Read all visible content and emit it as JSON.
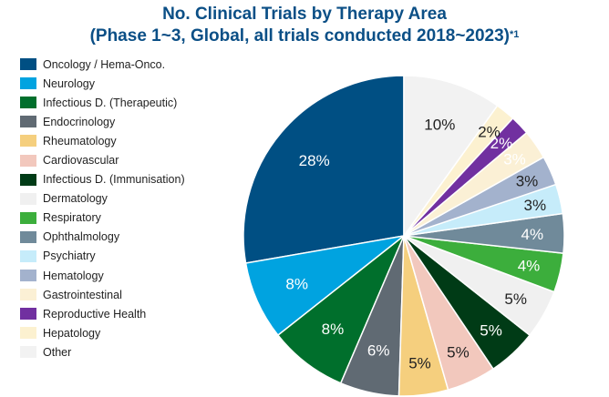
{
  "chart_data": {
    "type": "pie",
    "title": "No. Clinical Trials by Therapy Area",
    "subtitle": "(Phase 1~3, Global, all trials conducted 2018~2023)",
    "footnote_marker": "*1",
    "slices": [
      {
        "name": "Oncology / Hema-Onco.",
        "value": 28,
        "label": "28%",
        "color": "#004f83",
        "label_color": "#ffffff"
      },
      {
        "name": "Neurology",
        "value": 8,
        "label": "8%",
        "color": "#00a3e0",
        "label_color": "#ffffff"
      },
      {
        "name": "Infectious D. (Therapeutic)",
        "value": 8,
        "label": "8%",
        "color": "#006f2c",
        "label_color": "#ffffff"
      },
      {
        "name": "Endocrinology",
        "value": 6,
        "label": "6%",
        "color": "#606a73",
        "label_color": "#ffffff"
      },
      {
        "name": "Rheumatology",
        "value": 5,
        "label": "5%",
        "color": "#f5cf7e",
        "label_color": "#222222"
      },
      {
        "name": "Cardiovascular",
        "value": 5,
        "label": "5%",
        "color": "#f2c8bd",
        "label_color": "#222222"
      },
      {
        "name": "Infectious D. (Immunisation)",
        "value": 5,
        "label": "5%",
        "color": "#003b16",
        "label_color": "#ffffff"
      },
      {
        "name": "Dermatology",
        "value": 5,
        "label": "5%",
        "color": "#f0f0f0",
        "label_color": "#222222"
      },
      {
        "name": "Respiratory",
        "value": 4,
        "label": "4%",
        "color": "#3cae3c",
        "label_color": "#ffffff"
      },
      {
        "name": "Ophthalmology",
        "value": 4,
        "label": "4%",
        "color": "#708a9a",
        "label_color": "#ffffff"
      },
      {
        "name": "Psychiatry",
        "value": 3,
        "label": "3%",
        "color": "#c6ecfa",
        "label_color": "#222222"
      },
      {
        "name": "Hematology",
        "value": 3,
        "label": "3%",
        "color": "#a3b2cd",
        "label_color": "#222222"
      },
      {
        "name": "Gastrointestinal",
        "value": 3,
        "label": "3%",
        "color": "#fbf0d5",
        "label_color": "#ffffff"
      },
      {
        "name": "Reproductive Health",
        "value": 2,
        "label": "2%",
        "color": "#7130a0",
        "label_color": "#ffffff"
      },
      {
        "name": "Hepatology",
        "value": 2,
        "label": "2%",
        "color": "#fcf1d0",
        "label_color": "#222222"
      },
      {
        "name": "Other",
        "value": 10,
        "label": "10%",
        "color": "#f2f2f2",
        "label_color": "#222222"
      }
    ]
  }
}
